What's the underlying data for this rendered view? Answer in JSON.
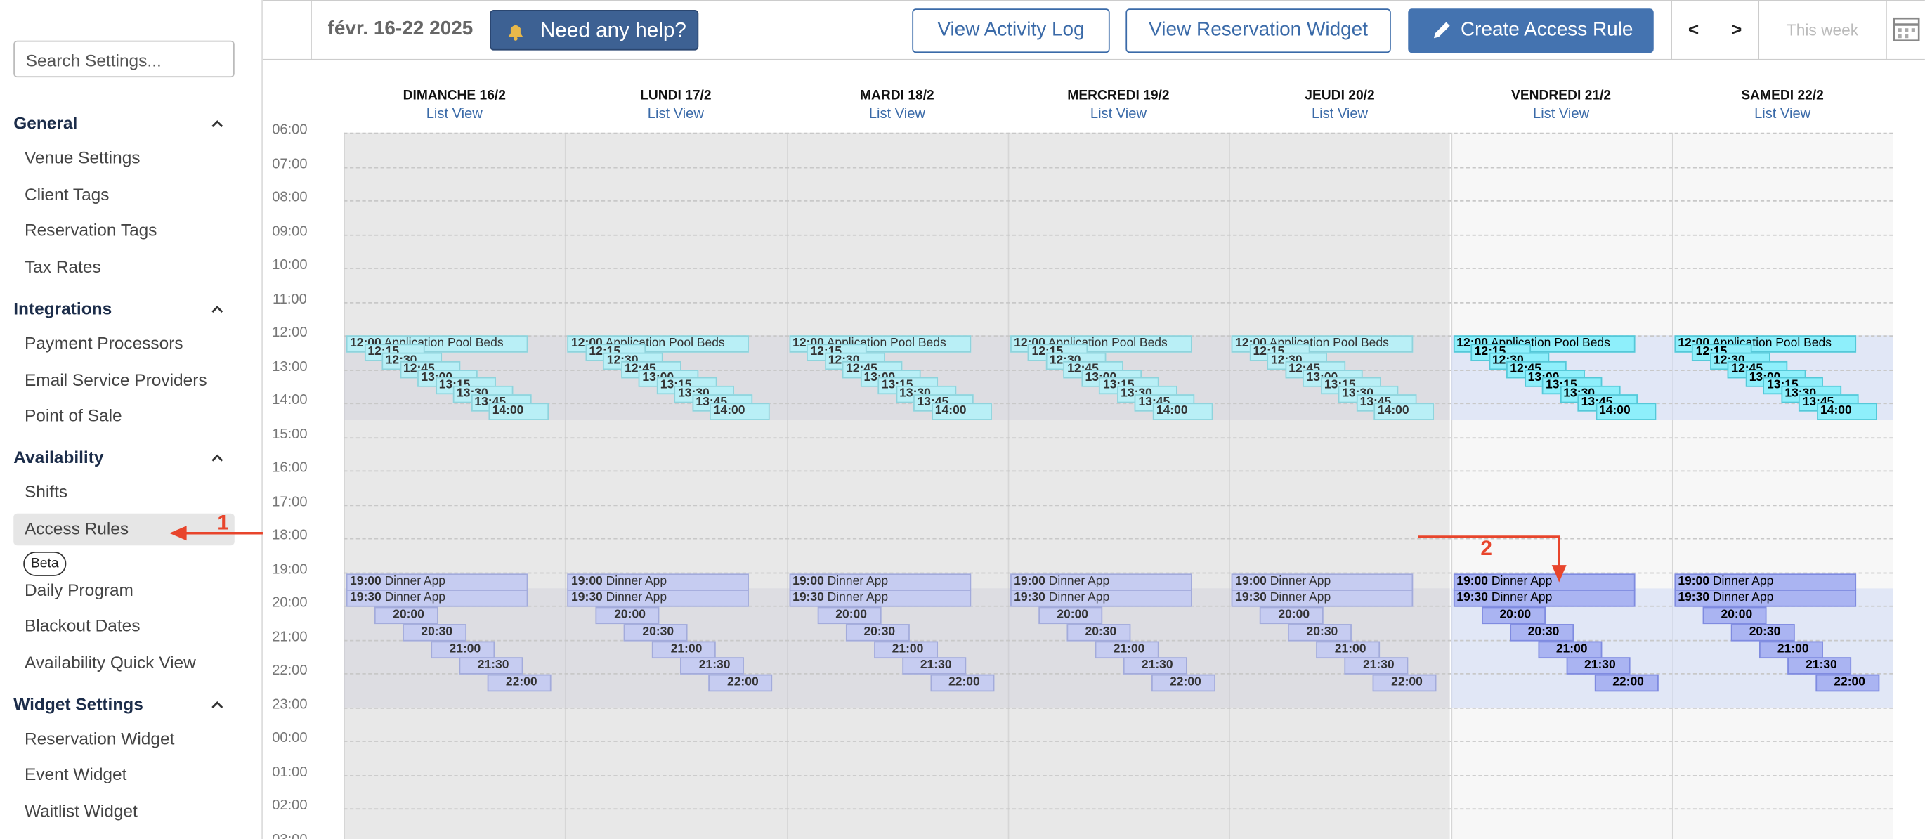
{
  "sidebar": {
    "search_placeholder": "Search Settings...",
    "sections": [
      {
        "title": "General",
        "items": [
          "Venue Settings",
          "Client Tags",
          "Reservation Tags",
          "Tax Rates"
        ]
      },
      {
        "title": "Integrations",
        "items": [
          "Payment Processors",
          "Email Service Providers",
          "Point of Sale"
        ]
      },
      {
        "title": "Availability",
        "items": [
          "Shifts",
          "Access Rules",
          "Daily Program",
          "Blackout Dates",
          "Availability Quick View"
        ]
      },
      {
        "title": "Widget Settings",
        "items": [
          "Reservation Widget",
          "Event Widget",
          "Waitlist Widget"
        ]
      }
    ],
    "active_item": "Access Rules",
    "badge": "Beta"
  },
  "header": {
    "date_range": "févr. 16-22 2025",
    "help": "Need any help?",
    "activity_log": "View Activity Log",
    "reservation_widget": "View Reservation Widget",
    "create_rule": "Create Access Rule",
    "prev": "<",
    "next": ">",
    "this_week": "This week"
  },
  "calendar": {
    "days": [
      {
        "name": "DIMANCHE 16/2",
        "link": "List View"
      },
      {
        "name": "LUNDI 17/2",
        "link": "List View"
      },
      {
        "name": "MARDI 18/2",
        "link": "List View"
      },
      {
        "name": "MERCREDI 19/2",
        "link": "List View"
      },
      {
        "name": "JEUDI 20/2",
        "link": "List View"
      },
      {
        "name": "VENDREDI 21/2",
        "link": "List View"
      },
      {
        "name": "SAMEDI 22/2",
        "link": "List View"
      }
    ],
    "hours": [
      "06:00",
      "07:00",
      "08:00",
      "09:00",
      "10:00",
      "11:00",
      "12:00",
      "13:00",
      "14:00",
      "15:00",
      "16:00",
      "17:00",
      "18:00",
      "19:00",
      "20:00",
      "21:00",
      "22:00",
      "23:00",
      "00:00",
      "01:00",
      "02:00",
      "03:00"
    ],
    "lunch_events": [
      {
        "time": "12:00",
        "label": "Application Pool Beds"
      },
      {
        "time": "12:15"
      },
      {
        "time": "12:30"
      },
      {
        "time": "12:45"
      },
      {
        "time": "13:00"
      },
      {
        "time": "13:15"
      },
      {
        "time": "13:30"
      },
      {
        "time": "13:45"
      },
      {
        "time": "14:00"
      }
    ],
    "dinner_events": [
      {
        "time": "19:00",
        "label": "Dinner App"
      },
      {
        "time": "19:30",
        "label": "Dinner App"
      },
      {
        "time": "20:00"
      },
      {
        "time": "20:30"
      },
      {
        "time": "21:00"
      },
      {
        "time": "21:30"
      },
      {
        "time": "22:00"
      }
    ]
  },
  "annotations": [
    "1",
    "2"
  ]
}
